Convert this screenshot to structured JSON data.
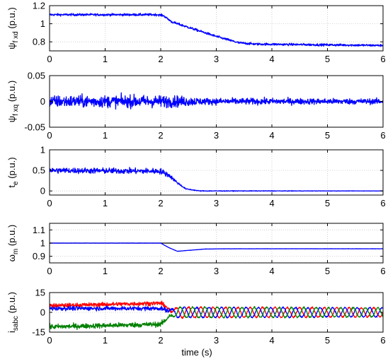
{
  "figure": {
    "xlabel": "time (s)"
  },
  "chart_data": [
    {
      "type": "line",
      "ylabel": {
        "main": "ψ",
        "sub": "f xd",
        "unit": " (p.u.)"
      },
      "xlim": [
        0,
        6
      ],
      "ylim": [
        0.7,
        1.2
      ],
      "xticks": [
        "0",
        "1",
        "2",
        "3",
        "4",
        "5",
        "6"
      ],
      "yticks": [
        {
          "v": 0.8,
          "t": "0.8"
        },
        {
          "v": 1,
          "t": "1"
        },
        {
          "v": 1.2,
          "t": "1.2"
        }
      ],
      "grid": true,
      "series": [
        {
          "color": "#0000ff",
          "noise": 0.012,
          "points": [
            [
              0,
              1.1
            ],
            [
              1.95,
              1.1
            ],
            [
              2.05,
              1.09
            ],
            [
              2.2,
              1.02
            ],
            [
              2.5,
              0.96
            ],
            [
              3.0,
              0.86
            ],
            [
              3.4,
              0.79
            ],
            [
              3.7,
              0.775
            ],
            [
              6,
              0.76
            ]
          ]
        }
      ]
    },
    {
      "type": "line",
      "ylabel": {
        "main": "ψ",
        "sub": "f xq",
        "unit": " (p.u.)"
      },
      "xlim": [
        0,
        6
      ],
      "ylim": [
        -0.05,
        0.05
      ],
      "xticks": [
        "0",
        "1",
        "2",
        "3",
        "4",
        "5",
        "6"
      ],
      "yticks": [
        {
          "v": -0.05,
          "t": "-0.05"
        },
        {
          "v": 0,
          "t": "0"
        },
        {
          "v": 0.05,
          "t": "0.05"
        }
      ],
      "grid": true,
      "series": [
        {
          "color": "#0000ff",
          "noise": [
            [
              0,
              0.011
            ],
            [
              2.2,
              0.011
            ],
            [
              2.8,
              0.006
            ],
            [
              6,
              0.005
            ]
          ],
          "points": [
            [
              0,
              0
            ],
            [
              6,
              0
            ]
          ]
        }
      ]
    },
    {
      "type": "line",
      "ylabel": {
        "main": "t",
        "sub": "e",
        "unit": " (p.u.)"
      },
      "xlim": [
        0,
        6
      ],
      "ylim": [
        -0.1,
        1
      ],
      "xticks": [
        "0",
        "1",
        "2",
        "3",
        "4",
        "5",
        "6"
      ],
      "yticks": [
        {
          "v": 0,
          "t": "0"
        },
        {
          "v": 0.5,
          "t": "0.5"
        },
        {
          "v": 1,
          "t": "1"
        }
      ],
      "grid": true,
      "series": [
        {
          "color": "#0000ff",
          "noise": [
            [
              0,
              0.065
            ],
            [
              2.05,
              0.065
            ],
            [
              2.45,
              0.01
            ],
            [
              6,
              0.003
            ]
          ],
          "points": [
            [
              0,
              0.5
            ],
            [
              2.0,
              0.48
            ],
            [
              2.15,
              0.38
            ],
            [
              2.3,
              0.2
            ],
            [
              2.45,
              0.05
            ],
            [
              2.7,
              0.0
            ],
            [
              6,
              0.0
            ]
          ]
        }
      ]
    },
    {
      "type": "line",
      "ylabel": {
        "main": "ω",
        "sub": "m",
        "unit": " (p.u.)"
      },
      "xlim": [
        0,
        6
      ],
      "ylim": [
        0.85,
        1.15
      ],
      "xticks": [
        "0",
        "1",
        "2",
        "3",
        "4",
        "5",
        "6"
      ],
      "yticks": [
        {
          "v": 0.9,
          "t": "0.9"
        },
        {
          "v": 1,
          "t": "1"
        },
        {
          "v": 1.1,
          "t": "1.1"
        }
      ],
      "grid": true,
      "series": [
        {
          "color": "#000000",
          "noise": 0,
          "points": [
            [
              0,
              1
            ],
            [
              6,
              1
            ]
          ]
        },
        {
          "color": "#0000ff",
          "noise": 0.001,
          "points": [
            [
              0,
              1
            ],
            [
              2.0,
              1
            ],
            [
              2.15,
              0.965
            ],
            [
              2.3,
              0.938
            ],
            [
              2.5,
              0.945
            ],
            [
              2.8,
              0.955
            ],
            [
              3.2,
              0.957
            ],
            [
              6,
              0.957
            ]
          ]
        }
      ]
    },
    {
      "type": "line",
      "ylabel": {
        "main": "i",
        "sub": "sabc",
        "unit": " (p.u.)"
      },
      "xlim": [
        0,
        6
      ],
      "ylim": [
        -15,
        15
      ],
      "xticks": [
        "0",
        "1",
        "2",
        "3",
        "4",
        "5",
        "6"
      ],
      "yticks": [
        {
          "v": -15,
          "t": "-15"
        },
        {
          "v": 0,
          "t": "0"
        },
        {
          "v": 15,
          "t": "15"
        }
      ],
      "grid": true,
      "series": [
        {
          "color": "#ff0000",
          "points": [
            [
              0,
              5
            ],
            [
              2.0,
              7
            ],
            [
              2.25,
              0
            ],
            [
              6,
              0
            ]
          ],
          "amp": [
            [
              0,
              0
            ],
            [
              2.1,
              0
            ],
            [
              2.3,
              4
            ],
            [
              6,
              3.5
            ]
          ],
          "phase": 0,
          "freq": 4.5,
          "noise": [
            [
              0,
              1.5
            ],
            [
              2.1,
              1.5
            ],
            [
              2.3,
              0.6
            ],
            [
              6,
              0.5
            ]
          ]
        },
        {
          "color": "#0000ff",
          "points": [
            [
              0,
              3
            ],
            [
              2.0,
              3
            ],
            [
              2.25,
              0
            ],
            [
              6,
              0
            ]
          ],
          "amp": [
            [
              0,
              0
            ],
            [
              2.1,
              0
            ],
            [
              2.3,
              4
            ],
            [
              6,
              3.5
            ]
          ],
          "phase": 2.094,
          "freq": 4.5,
          "noise": [
            [
              0,
              1.5
            ],
            [
              2.1,
              1.5
            ],
            [
              2.3,
              0.6
            ],
            [
              6,
              0.5
            ]
          ]
        },
        {
          "color": "#008000",
          "points": [
            [
              0,
              -11
            ],
            [
              2.0,
              -9
            ],
            [
              2.25,
              0
            ],
            [
              6,
              0
            ]
          ],
          "amp": [
            [
              0,
              0
            ],
            [
              2.1,
              0
            ],
            [
              2.3,
              4
            ],
            [
              6,
              3.5
            ]
          ],
          "phase": 4.189,
          "freq": 4.5,
          "noise": [
            [
              0,
              1.8
            ],
            [
              2.1,
              1.8
            ],
            [
              2.3,
              0.6
            ],
            [
              6,
              0.5
            ]
          ]
        }
      ]
    }
  ]
}
